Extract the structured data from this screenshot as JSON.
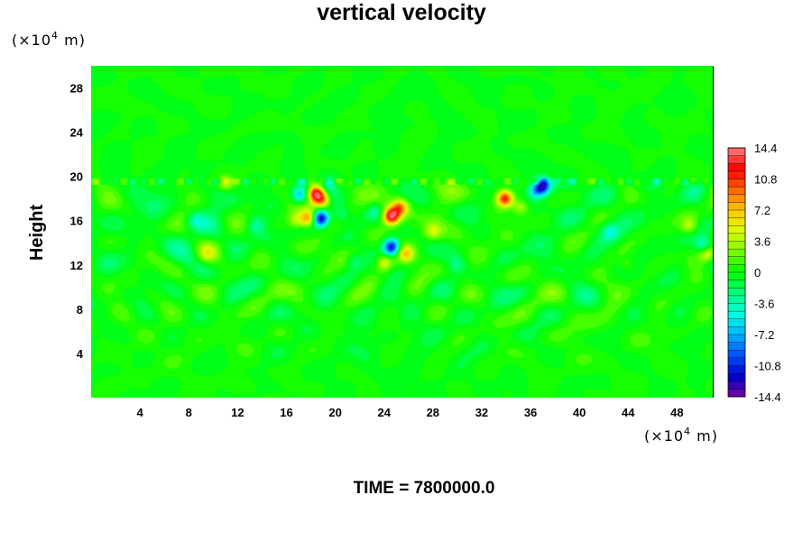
{
  "chart_data": {
    "type": "heatmap",
    "title": "vertical velocity",
    "ylabel": "Height",
    "xlabel": "",
    "x_unit": "(×10",
    "y_unit": "(×10",
    "unit_exp": "4",
    "unit_suffix": " m)",
    "footer": "TIME = 7800000.0",
    "xlim": [
      0,
      51
    ],
    "ylim": [
      0,
      30
    ],
    "x_ticks": [
      4,
      8,
      12,
      16,
      20,
      24,
      28,
      32,
      36,
      40,
      44,
      48
    ],
    "y_ticks": [
      4,
      8,
      12,
      16,
      20,
      24,
      28
    ],
    "colorbar": {
      "range": [
        -14.4,
        14.4
      ],
      "tick_values": [
        14.4,
        10.8,
        7.2,
        3.6,
        0,
        -3.6,
        -7.2,
        -10.8,
        -14.4
      ],
      "tick_labels": [
        "14.4",
        "10.8",
        "7.2",
        "3.6",
        "0",
        "-3.6",
        "-7.2",
        "-10.8",
        "-14.4"
      ],
      "levels": 32,
      "colors": [
        "#7b00a0",
        "#0000c8",
        "#0050ff",
        "#00b4ff",
        "#00ffe0",
        "#00ff78",
        "#00ff00",
        "#78ff00",
        "#dcff00",
        "#ffc800",
        "#ff6400",
        "#ff0000",
        "#ff8080"
      ]
    },
    "background_value": 0,
    "turbulent_layer": {
      "y_bottom": 10,
      "y_top": 19.8
    },
    "features": [
      {
        "x": 17.1,
        "y": 18.3,
        "value": -7.5
      },
      {
        "x": 18.4,
        "y": 18.5,
        "value": 12.5
      },
      {
        "x": 18.9,
        "y": 17.9,
        "value": 9
      },
      {
        "x": 17.8,
        "y": 16.2,
        "value": 8.5
      },
      {
        "x": 18.8,
        "y": 16.2,
        "value": -13.5
      },
      {
        "x": 16.8,
        "y": 16.0,
        "value": 4
      },
      {
        "x": 24.6,
        "y": 16.4,
        "value": 13
      },
      {
        "x": 25.3,
        "y": 17.2,
        "value": 8
      },
      {
        "x": 23.3,
        "y": 16.8,
        "value": -3
      },
      {
        "x": 24.6,
        "y": 13.6,
        "value": -13
      },
      {
        "x": 25.8,
        "y": 13.0,
        "value": 6
      },
      {
        "x": 24.0,
        "y": 12.2,
        "value": 5
      },
      {
        "x": 33.9,
        "y": 18.0,
        "value": 12
      },
      {
        "x": 37.0,
        "y": 19.1,
        "value": -12
      },
      {
        "x": 36.4,
        "y": 18.7,
        "value": -6
      },
      {
        "x": 35.2,
        "y": 17.2,
        "value": 4
      },
      {
        "x": 20.5,
        "y": 16.5,
        "value": -3
      },
      {
        "x": 28.0,
        "y": 15.0,
        "value": 4
      },
      {
        "x": 13.5,
        "y": 15.5,
        "value": -3
      },
      {
        "x": 8.5,
        "y": 16.0,
        "value": -3
      },
      {
        "x": 42.5,
        "y": 15.0,
        "value": -3
      },
      {
        "x": 49.0,
        "y": 15.5,
        "value": 4
      },
      {
        "x": 50.5,
        "y": 13.0,
        "value": 5
      },
      {
        "x": 50.2,
        "y": 13.8,
        "value": -5
      },
      {
        "x": 19.5,
        "y": 19.3,
        "value": -4
      },
      {
        "x": 11.0,
        "y": 19.4,
        "value": 4
      },
      {
        "x": 30.0,
        "y": 12.0,
        "value": -2.5
      },
      {
        "x": 21.5,
        "y": 12.3,
        "value": -3
      },
      {
        "x": 9.5,
        "y": 13.0,
        "value": 3
      },
      {
        "x": 44.0,
        "y": 12.0,
        "value": 2.5
      }
    ]
  }
}
